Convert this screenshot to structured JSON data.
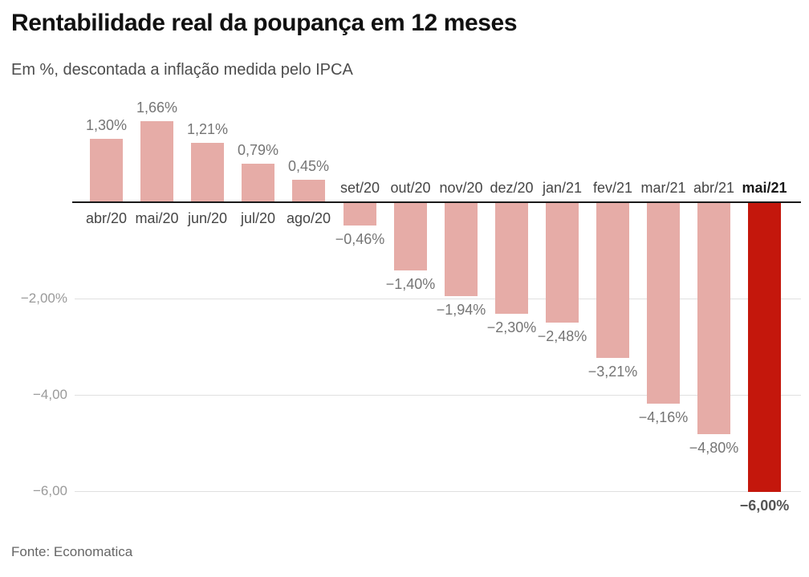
{
  "header": {
    "title": "Rentabilidade real da poupança em 12 meses",
    "subtitle": "Em %, descontada a inflação medida pelo IPCA"
  },
  "footer": {
    "source": "Fonte: Economatica"
  },
  "chart_data": {
    "type": "bar",
    "title": "Rentabilidade real da poupança em 12 meses",
    "subtitle": "Em %, descontada a inflação medida pelo IPCA",
    "unit": "%",
    "categories": [
      "abr/20",
      "mai/20",
      "jun/20",
      "jul/20",
      "ago/20",
      "set/20",
      "out/20",
      "nov/20",
      "dez/20",
      "jan/21",
      "fev/21",
      "mar/21",
      "abr/21",
      "mai/21"
    ],
    "values": [
      1.3,
      1.66,
      1.21,
      0.79,
      0.45,
      -0.46,
      -1.4,
      -1.94,
      -2.3,
      -2.48,
      -3.21,
      -4.16,
      -4.8,
      -6.0
    ],
    "value_labels": [
      "1,30%",
      "1,66%",
      "1,21%",
      "0,79%",
      "0,45%",
      "−0,46%",
      "−1,40%",
      "−1,94%",
      "−2,30%",
      "−2,48%",
      "−3,21%",
      "−4,16%",
      "−4,80%",
      "−6,00%"
    ],
    "highlight_index": 13,
    "bar_color": "#e6aca7",
    "highlight_color": "#c4170c",
    "axis_color": "#1a1a1a",
    "grid_color": "#e0e0e0",
    "label_color": "#454545",
    "value_label_color": "#757575",
    "tick_label_color": "#9a9a9a",
    "y_ticks": [
      {
        "value": -2,
        "label": "−2,00%"
      },
      {
        "value": -4,
        "label": "−4,00"
      },
      {
        "value": -6,
        "label": "−6,00"
      }
    ],
    "ylim": [
      -6.4,
      1.9
    ],
    "grid": "horizontal",
    "baseline": 0,
    "legend": null,
    "xlabel": "",
    "ylabel": "",
    "source": "Fonte: Economatica"
  }
}
